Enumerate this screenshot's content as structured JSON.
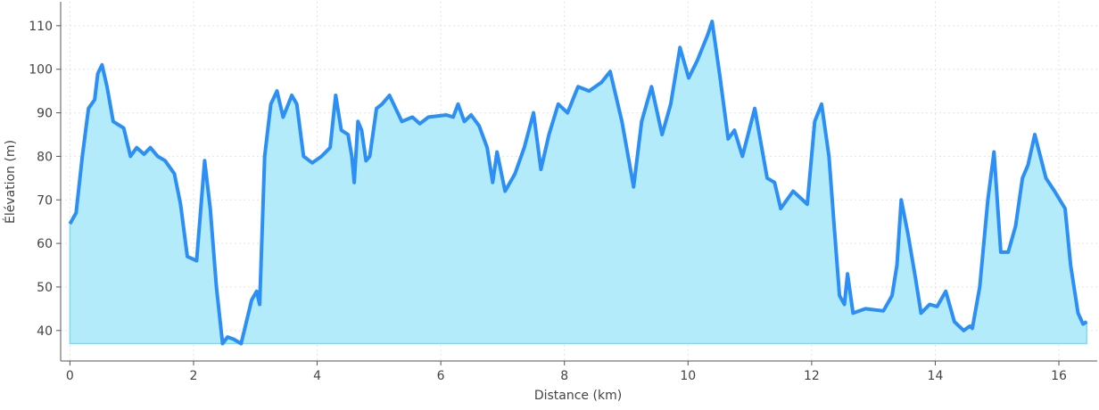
{
  "chart_data": {
    "type": "area",
    "x_label": "Distance (km)",
    "y_label": "Élévation (m)",
    "x": [
      0,
      0.1,
      0.2,
      0.3,
      0.4,
      0.45,
      0.52,
      0.6,
      0.7,
      0.87,
      0.98,
      1.08,
      1.2,
      1.3,
      1.42,
      1.54,
      1.69,
      1.79,
      1.9,
      2.05,
      2.18,
      2.27,
      2.37,
      2.47,
      2.55,
      2.65,
      2.77,
      2.94,
      3.02,
      3.07,
      3.15,
      3.25,
      3.35,
      3.45,
      3.59,
      3.67,
      3.78,
      3.92,
      4.07,
      4.21,
      4.3,
      4.39,
      4.5,
      4.56,
      4.6,
      4.66,
      4.72,
      4.79,
      4.85,
      4.96,
      5.05,
      5.17,
      5.37,
      5.54,
      5.66,
      5.8,
      6.09,
      6.2,
      6.28,
      6.38,
      6.49,
      6.62,
      6.75,
      6.84,
      6.91,
      7.04,
      7.2,
      7.35,
      7.5,
      7.62,
      7.75,
      7.9,
      8.05,
      8.22,
      8.4,
      8.6,
      8.74,
      8.93,
      9.12,
      9.25,
      9.41,
      9.58,
      9.72,
      9.87,
      10.01,
      10.15,
      10.32,
      10.39,
      10.52,
      10.65,
      10.75,
      10.88,
      11.08,
      11.28,
      11.4,
      11.5,
      11.7,
      11.93,
      12.05,
      12.16,
      12.28,
      12.37,
      12.45,
      12.53,
      12.58,
      12.67,
      12.87,
      13.16,
      13.3,
      13.38,
      13.45,
      13.56,
      13.68,
      13.77,
      13.91,
      14.03,
      14.17,
      14.31,
      14.46,
      14.56,
      14.6,
      14.72,
      14.85,
      14.95,
      15.06,
      15.18,
      15.3,
      15.41,
      15.5,
      15.61,
      15.79,
      15.93,
      16.1,
      16.19,
      16.31,
      16.39,
      16.45
    ],
    "values": [
      64.5,
      67,
      80,
      91,
      93,
      99,
      101,
      96,
      88,
      86.5,
      80,
      82,
      80.5,
      82,
      80,
      79,
      76,
      69,
      57,
      56,
      79,
      68,
      50,
      37,
      38.5,
      38,
      37,
      47,
      49,
      46,
      80,
      92,
      95,
      89,
      94,
      92,
      80,
      78.5,
      80,
      82,
      94,
      86,
      85,
      80,
      74,
      88,
      86,
      79,
      80,
      91,
      92,
      94,
      88,
      89,
      87.5,
      89,
      89.5,
      89,
      92,
      88,
      89.5,
      87,
      82,
      74,
      81,
      72,
      76,
      82,
      90,
      77,
      85,
      92,
      90,
      96,
      95,
      97,
      99.5,
      88,
      73,
      88,
      96,
      85,
      92,
      105,
      98,
      102,
      108,
      111,
      98,
      84,
      86,
      80,
      91,
      75,
      74,
      68,
      72,
      69,
      88,
      92,
      80,
      63,
      48,
      46,
      53,
      44,
      45,
      44.5,
      48,
      55,
      70,
      62,
      52,
      44,
      46,
      45.5,
      49,
      42,
      40,
      41,
      40.5,
      50,
      70,
      81,
      58,
      58,
      64,
      75,
      78,
      85,
      75,
      72,
      68,
      55,
      44,
      41.5,
      42
    ],
    "color": "#2b8ff5",
    "fill": "#b3ebfb",
    "xlim": [
      -0.15,
      16.62
    ],
    "ylim": [
      33,
      115.5
    ],
    "xticks": [
      0,
      2,
      4,
      6,
      8,
      10,
      12,
      14,
      16
    ],
    "yticks": [
      40,
      50,
      60,
      70,
      80,
      90,
      100,
      110
    ],
    "grid": true
  }
}
